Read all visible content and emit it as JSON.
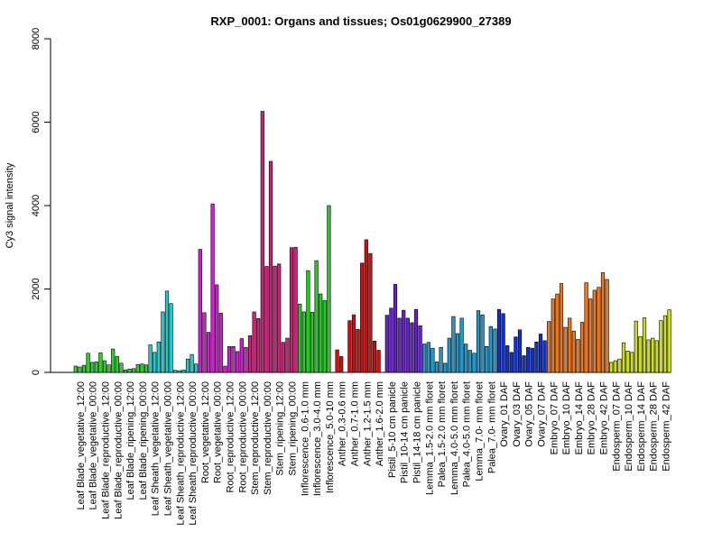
{
  "chart_data": {
    "type": "bar",
    "title": "RXP_0001: Organs and tissues; Os01g0629900_27389",
    "xlabel": "",
    "ylabel": "Cy3 signal intensity",
    "ylim": [
      0,
      8000
    ],
    "yticks": [
      0,
      2000,
      4000,
      6000,
      8000
    ],
    "grid": false,
    "labeled_categories": [
      "Leaf Blade_vegetative_12:00",
      "Leaf Blade_vegetative_00:00",
      "Leaf Blade_reproductive_12:00",
      "Leaf Blade_reproductive_00:00",
      "Leaf Blade_ripening_12:00",
      "Leaf Blade_ripening_00:00",
      "Leaf Sheath_vegetative_12:00",
      "Leaf Sheath_vegetative_00:00",
      "Leaf Sheath_reproductive_12:00",
      "Leaf Sheath_reproductive_00:00",
      "Root_vegetative_12:00",
      "Root_vegetative_00:00",
      "Root_reproductive_12:00",
      "Root_reproductive_00:00",
      "Stem_reproductive_12:00",
      "Stem_reproductive_00:00",
      "Stem_ripening_12:00",
      "Stem_ripening_00:00",
      "Inflorescence_0.6-1.0 mm",
      "Inflorescence_3.0-4.0 mm",
      "Inflorescence_5.0-10 mm",
      "Anther_0.3-0.6 mm",
      "Anther_0.7-1.0 mm",
      "Anther_1.2-1.5 mm",
      "Anther_1.6-2.0 mm",
      "Pistil_5-10 cm panicle",
      "Pistil_10-14 cm panicle",
      "Pistil_14-18 cm panicle",
      "Lemma_1.5-2.0 mm floret",
      "Palea_1.5-2.0 mm floret",
      "Lemma_4.0-5.0 mm floret",
      "Palea_4.0-5.0 mm floret",
      "Lemma_7.0- mm floret",
      "Palea_7.0- mm floret",
      "Ovary_01 DAF",
      "Ovary_03 DAF",
      "Ovary_05 DAF",
      "Ovary_07 DAF",
      "Embryo_07 DAF",
      "Embryo_10 DAF",
      "Embryo_14 DAF",
      "Embryo_28 DAF",
      "Embryo_42 DAF",
      "Endosperm_07 DAF",
      "Endosperm_10 DAF",
      "Endosperm_14 DAF",
      "Endosperm_28 DAF",
      "Endosperm_42 DAF"
    ],
    "bars_per_category": 3,
    "values": [
      150,
      130,
      170,
      460,
      240,
      250,
      470,
      280,
      180,
      560,
      380,
      220,
      60,
      80,
      90,
      190,
      200,
      180,
      660,
      480,
      730,
      1450,
      1950,
      1650,
      50,
      40,
      60,
      320,
      430,
      200,
      2950,
      1430,
      960,
      4040,
      2100,
      1420,
      150,
      620,
      620,
      500,
      810,
      600,
      880,
      1450,
      1290,
      6260,
      2540,
      5060,
      2550,
      2600,
      720,
      820,
      2990,
      3000,
      1640,
      1450,
      2440,
      1440,
      2680,
      1880,
      1720,
      4000,
      0,
      540,
      380,
      0,
      1240,
      1380,
      1030,
      2620,
      3180,
      2850,
      750,
      530,
      0,
      1370,
      1540,
      2110,
      1300,
      1490,
      1300,
      1190,
      1510,
      1120,
      680,
      720,
      580,
      250,
      600,
      220,
      820,
      1340,
      930,
      1300,
      680,
      530,
      460,
      1480,
      1380,
      620,
      1100,
      1040,
      1510,
      1410,
      640,
      480,
      850,
      1020,
      400,
      600,
      580,
      730,
      920,
      760,
      1220,
      1760,
      1880,
      2130,
      1080,
      1300,
      990,
      790,
      1200,
      2150,
      1760,
      1970,
      2040,
      2390,
      2230,
      240,
      280,
      320,
      710,
      510,
      480,
      1230,
      860,
      1310,
      780,
      820,
      760,
      1240,
      1360,
      1500
    ],
    "colors": [
      "#33cc33",
      "#33cc33",
      "#33cc33",
      "#33cc33",
      "#33cc33",
      "#33cc33",
      "#22cccc",
      "#22cccc",
      "#22cccc",
      "#22cccc",
      "#cc22cc",
      "#cc22cc",
      "#cc22cc",
      "#cc22cc",
      "#cc2277",
      "#cc2277",
      "#cc2277",
      "#cc2277",
      "#22cc22",
      "#22cc22",
      "#22cc22",
      "#cc1111",
      "#cc1111",
      "#cc1111",
      "#cc1111",
      "#6622cc",
      "#6622cc",
      "#6622cc",
      "#2299cc",
      "#2299cc",
      "#2299cc",
      "#2299cc",
      "#2299cc",
      "#2299cc",
      "#1133cc",
      "#1133cc",
      "#1133cc",
      "#1133cc",
      "#ee7722",
      "#ee7722",
      "#ee7722",
      "#ee7722",
      "#ee7722",
      "#ccdd22",
      "#ccdd22",
      "#ccdd22",
      "#ccdd22",
      "#ccdd22"
    ]
  }
}
